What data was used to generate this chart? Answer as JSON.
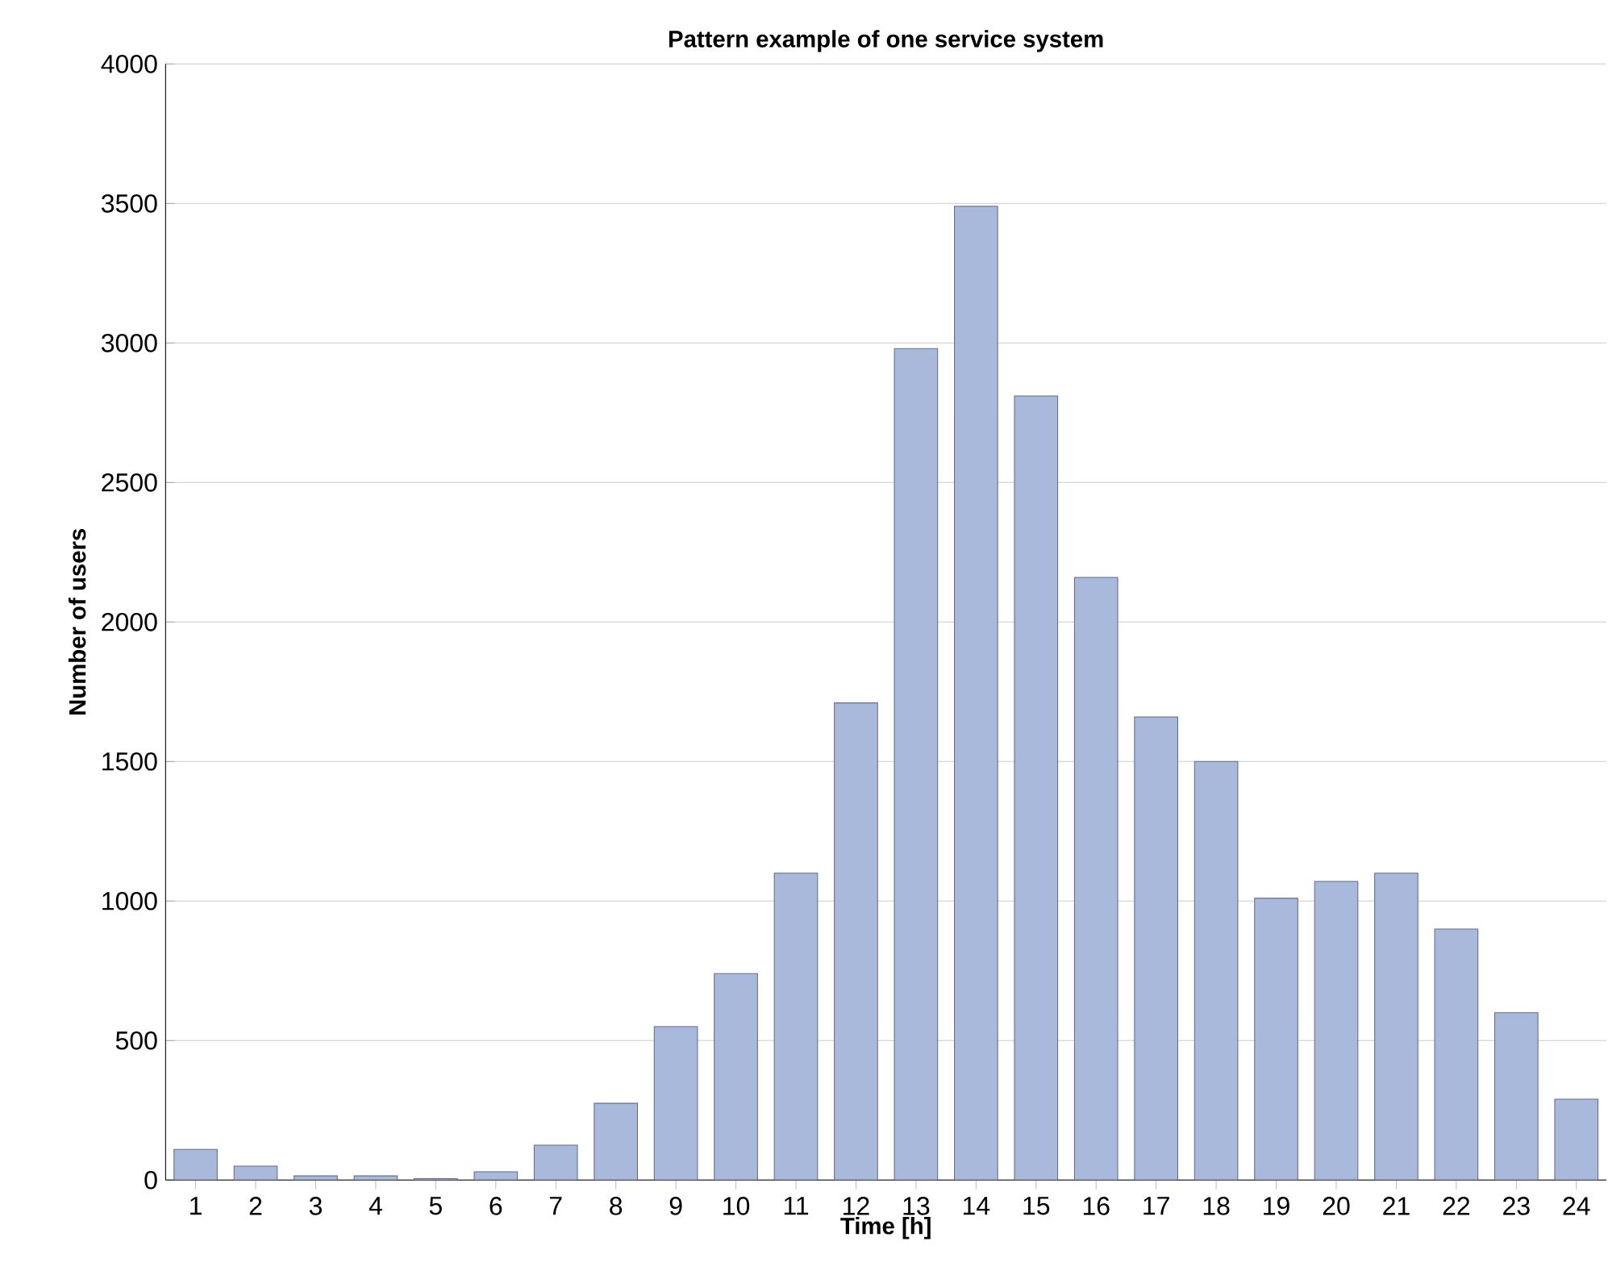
{
  "chart_data": {
    "type": "bar",
    "title": "Pattern example of one service system",
    "xlabel": "Time [h]",
    "ylabel": "Number of users",
    "categories": [
      "1",
      "2",
      "3",
      "4",
      "5",
      "6",
      "7",
      "8",
      "9",
      "10",
      "11",
      "12",
      "13",
      "14",
      "15",
      "16",
      "17",
      "18",
      "19",
      "20",
      "21",
      "22",
      "23",
      "24"
    ],
    "values": [
      110,
      50,
      15,
      15,
      5,
      30,
      125,
      275,
      550,
      740,
      1100,
      1710,
      2980,
      3490,
      2810,
      2160,
      1660,
      1500,
      1010,
      1070,
      1100,
      900,
      600,
      290
    ],
    "color": "#a9b9dc",
    "ylim": [
      0,
      4000
    ],
    "yticks": [
      0,
      500,
      1000,
      1500,
      2000,
      2500,
      3000,
      3500,
      4000
    ],
    "grid": "y"
  }
}
